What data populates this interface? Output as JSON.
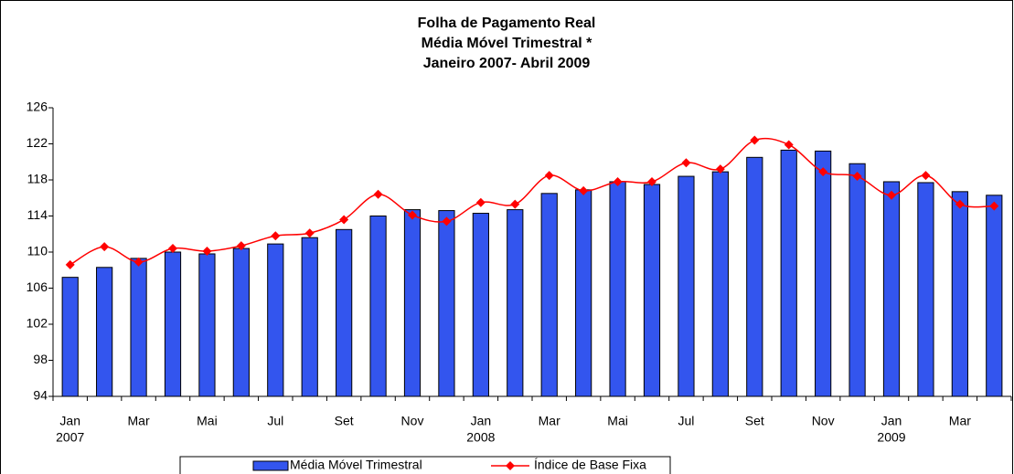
{
  "chart_data": {
    "type": "bar_line",
    "title": [
      "Folha de Pagamento Real",
      "Média Móvel Trimestral *",
      "Janeiro 2007- Abril 2009"
    ],
    "categories": [
      "Jan",
      null,
      "Mar",
      null,
      "Mai",
      null,
      "Jul",
      null,
      "Set",
      null,
      "Nov",
      null,
      "Jan",
      null,
      "Mar",
      null,
      "Mai",
      null,
      "Jul",
      null,
      "Set",
      null,
      "Nov",
      null,
      "Jan",
      null,
      "Mar",
      null
    ],
    "years": [
      "2007",
      null,
      null,
      null,
      null,
      null,
      null,
      null,
      null,
      null,
      null,
      null,
      "2008",
      null,
      null,
      null,
      null,
      null,
      null,
      null,
      null,
      null,
      null,
      null,
      "2009",
      null,
      null,
      null
    ],
    "series": [
      {
        "name": "Média Móvel Trimestral",
        "kind": "bar",
        "color": "#3355ee",
        "values": [
          107.2,
          108.3,
          109.3,
          110.0,
          109.8,
          110.4,
          110.9,
          111.6,
          112.5,
          114.0,
          114.7,
          114.6,
          114.3,
          114.7,
          116.5,
          116.9,
          117.8,
          117.5,
          118.4,
          118.9,
          120.5,
          121.3,
          121.2,
          119.8,
          117.8,
          117.7,
          116.7,
          116.3
        ]
      },
      {
        "name": "Índice de Base Fixa",
        "kind": "line",
        "color": "#ff0000",
        "values": [
          108.6,
          110.6,
          108.9,
          110.4,
          110.1,
          110.7,
          111.8,
          112.1,
          113.6,
          116.4,
          114.1,
          113.4,
          115.5,
          115.3,
          118.5,
          116.8,
          117.8,
          117.8,
          119.9,
          119.2,
          122.4,
          121.9,
          118.9,
          118.4,
          116.3,
          118.5,
          115.3,
          115.1
        ]
      }
    ],
    "ylim": [
      94,
      126
    ],
    "yticks": [
      94,
      98,
      102,
      106,
      110,
      114,
      118,
      122,
      126
    ],
    "grid": false,
    "legend": "bottom"
  }
}
